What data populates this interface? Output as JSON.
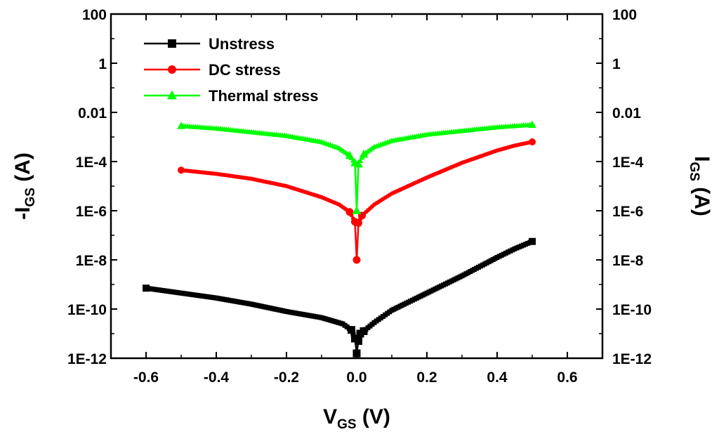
{
  "chart_data": {
    "type": "scatter",
    "title": "",
    "xlabel": {
      "main": "V",
      "sub": "GS",
      "unit": " (V)"
    },
    "ylabel_left": {
      "prefix": "-I",
      "sub": "GS",
      "unit": " (A)"
    },
    "ylabel_right": {
      "prefix": "I",
      "sub": "GS",
      "unit": " (A)"
    },
    "xlim": [
      -0.7,
      0.7
    ],
    "ylim_log10": [
      -12,
      2
    ],
    "yscale": "log",
    "x_ticks": [
      -0.6,
      -0.4,
      -0.2,
      0.0,
      0.2,
      0.4,
      0.6
    ],
    "x_tick_labels": [
      "-0.6",
      "-0.4",
      "-0.2",
      "0.0",
      "0.2",
      "0.4",
      "0.6"
    ],
    "y_ticks_log10": [
      2,
      0,
      -2,
      -4,
      -6,
      -8,
      -10,
      -12
    ],
    "y_tick_labels": [
      "100",
      "1",
      "0.01",
      "1E-4",
      "1E-6",
      "1E-8",
      "1E-10",
      "1E-12"
    ],
    "legend": {
      "position": "top-left"
    },
    "series": [
      {
        "name": "Unstress",
        "color": "#000000",
        "marker": "square",
        "x": [
          -0.6,
          -0.5,
          -0.4,
          -0.3,
          -0.2,
          -0.1,
          -0.04,
          -0.015,
          -0.005,
          0.0,
          0.005,
          0.01,
          0.02,
          0.05,
          0.1,
          0.2,
          0.3,
          0.4,
          0.45,
          0.5
        ],
        "y_log10": [
          -9.15,
          -9.35,
          -9.55,
          -9.8,
          -10.1,
          -10.35,
          -10.6,
          -10.85,
          -11.2,
          -11.8,
          -11.3,
          -11.0,
          -10.9,
          -10.55,
          -10.05,
          -9.35,
          -8.65,
          -7.9,
          -7.55,
          -7.25
        ]
      },
      {
        "name": "DC stress",
        "color": "#ff0000",
        "marker": "circle",
        "x": [
          -0.5,
          -0.4,
          -0.3,
          -0.2,
          -0.1,
          -0.05,
          -0.02,
          -0.005,
          0.0,
          0.005,
          0.015,
          0.05,
          0.1,
          0.2,
          0.3,
          0.4,
          0.45,
          0.5
        ],
        "y_log10": [
          -4.35,
          -4.5,
          -4.7,
          -5.0,
          -5.45,
          -5.75,
          -6.05,
          -6.45,
          -8.0,
          -6.5,
          -6.2,
          -5.75,
          -5.3,
          -4.65,
          -4.05,
          -3.55,
          -3.35,
          -3.2
        ]
      },
      {
        "name": "Thermal stress",
        "color": "#00ff00",
        "marker": "triangle",
        "x": [
          -0.5,
          -0.4,
          -0.3,
          -0.2,
          -0.1,
          -0.05,
          -0.02,
          -0.005,
          0.0,
          0.005,
          0.02,
          0.05,
          0.1,
          0.2,
          0.3,
          0.4,
          0.45,
          0.5
        ],
        "y_log10": [
          -2.55,
          -2.65,
          -2.8,
          -2.95,
          -3.2,
          -3.45,
          -3.75,
          -4.05,
          -6.0,
          -4.1,
          -3.7,
          -3.4,
          -3.15,
          -2.9,
          -2.75,
          -2.6,
          -2.55,
          -2.5
        ]
      }
    ]
  }
}
